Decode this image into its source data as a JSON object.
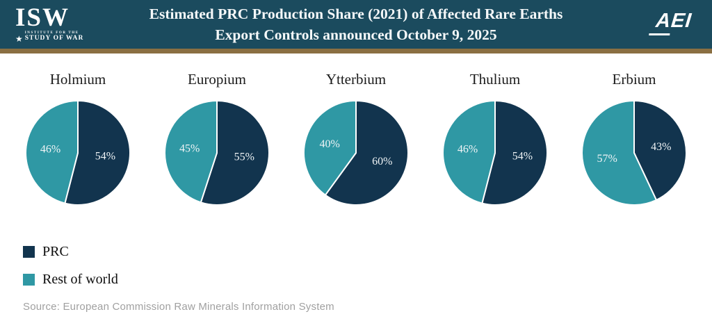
{
  "header": {
    "isw_logo": {
      "main": "ISW",
      "sub1": "INSTITUTE FOR THE",
      "sub2": "STUDY OF WAR",
      "star": "★"
    },
    "title_line1": "Estimated PRC Production Share (2021) of Affected Rare Earths",
    "title_line2": "Export Controls announced October 9, 2025",
    "aei_logo": "AEI"
  },
  "palette": {
    "header_bg": "#1b4b5e",
    "gold_bar": "#8a6f42",
    "prc": "#12344e",
    "rest_of_world": "#2f98a4",
    "slice_label_text": "#f0f4f6"
  },
  "chart_data": [
    {
      "type": "pie",
      "title": "Holmium",
      "labels": [
        "PRC",
        "Rest of world"
      ],
      "values": [
        54,
        46
      ],
      "value_labels": [
        "54%",
        "46%"
      ]
    },
    {
      "type": "pie",
      "title": "Europium",
      "labels": [
        "PRC",
        "Rest of world"
      ],
      "values": [
        55,
        45
      ],
      "value_labels": [
        "55%",
        "45%"
      ]
    },
    {
      "type": "pie",
      "title": "Ytterbium",
      "labels": [
        "PRC",
        "Rest of world"
      ],
      "values": [
        60,
        40
      ],
      "value_labels": [
        "60%",
        "40%"
      ]
    },
    {
      "type": "pie",
      "title": "Thulium",
      "labels": [
        "PRC",
        "Rest of world"
      ],
      "values": [
        54,
        46
      ],
      "value_labels": [
        "54%",
        "46%"
      ]
    },
    {
      "type": "pie",
      "title": "Erbium",
      "labels": [
        "PRC",
        "Rest of world"
      ],
      "values": [
        43,
        57
      ],
      "value_labels": [
        "43%",
        "57%"
      ]
    }
  ],
  "legend": {
    "items": [
      {
        "label": "PRC",
        "color": "#12344e"
      },
      {
        "label": "Rest of world",
        "color": "#2f98a4"
      }
    ]
  },
  "source": "Source: European Commission Raw Minerals Information System"
}
